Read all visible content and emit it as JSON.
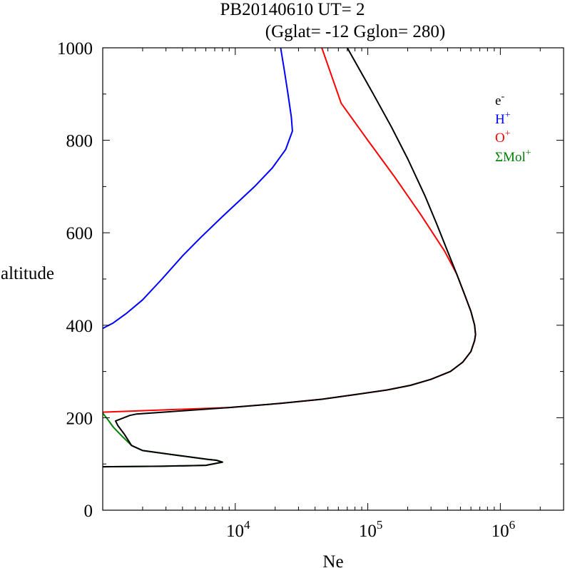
{
  "chart_data": {
    "type": "line",
    "title": "PB20140610   UT=  2",
    "subtitle": "(Gglat= -12   Gglon=  280)",
    "xlabel": "Ne",
    "ylabel": "altitude",
    "x_scale": "log",
    "xlim": [
      1000,
      3000000
    ],
    "ylim": [
      0,
      1000
    ],
    "x_major_ticks": [
      {
        "value": 10000,
        "base": "10",
        "exp": "4"
      },
      {
        "value": 100000,
        "base": "10",
        "exp": "5"
      },
      {
        "value": 1000000,
        "base": "10",
        "exp": "6"
      }
    ],
    "y_major_ticks": [
      0,
      200,
      400,
      600,
      800,
      1000
    ],
    "y_minor_step": 100,
    "grid": false,
    "legend_position": "top-right",
    "series": [
      {
        "name": "e",
        "sup": "-",
        "color": "#000000",
        "points": [
          [
            1000,
            94
          ],
          [
            2800,
            95
          ],
          [
            6000,
            97
          ],
          [
            8000,
            104
          ],
          [
            7200,
            108
          ],
          [
            6200,
            110
          ],
          [
            3800,
            118
          ],
          [
            2000,
            129
          ],
          [
            1650,
            140
          ],
          [
            1450,
            165
          ],
          [
            1300,
            183
          ],
          [
            1250,
            193
          ],
          [
            1600,
            205
          ],
          [
            1800,
            208
          ],
          [
            3200,
            213
          ],
          [
            9000,
            222
          ],
          [
            22000,
            231
          ],
          [
            45000,
            240
          ],
          [
            80000,
            250
          ],
          [
            140000,
            260
          ],
          [
            210000,
            270
          ],
          [
            300000,
            283
          ],
          [
            420000,
            300
          ],
          [
            520000,
            320
          ],
          [
            600000,
            343
          ],
          [
            640000,
            367
          ],
          [
            650000,
            380
          ],
          [
            640000,
            400
          ],
          [
            600000,
            430
          ],
          [
            540000,
            465
          ],
          [
            470000,
            510
          ],
          [
            400000,
            560
          ],
          [
            330000,
            620
          ],
          [
            270000,
            680
          ],
          [
            200000,
            760
          ],
          [
            150000,
            830
          ],
          [
            110000,
            900
          ],
          [
            70000,
            1000
          ]
        ]
      },
      {
        "name": "H",
        "sup": "+",
        "color": "#0000ff",
        "points": [
          [
            1000,
            393
          ],
          [
            1200,
            405
          ],
          [
            1500,
            425
          ],
          [
            2000,
            455
          ],
          [
            2800,
            500
          ],
          [
            4000,
            550
          ],
          [
            5500,
            590
          ],
          [
            8000,
            635
          ],
          [
            11000,
            672
          ],
          [
            14000,
            700
          ],
          [
            19000,
            740
          ],
          [
            24000,
            780
          ],
          [
            27000,
            820
          ],
          [
            26500,
            850
          ],
          [
            25000,
            900
          ],
          [
            23500,
            950
          ],
          [
            22000,
            1000
          ]
        ]
      },
      {
        "name": "O",
        "sup": "+",
        "color": "#ff0000",
        "points": [
          [
            1000,
            212
          ],
          [
            9000,
            222
          ],
          [
            22000,
            231
          ],
          [
            45000,
            240
          ],
          [
            80000,
            250
          ],
          [
            140000,
            260
          ],
          [
            210000,
            270
          ],
          [
            300000,
            283
          ],
          [
            420000,
            300
          ],
          [
            520000,
            320
          ],
          [
            600000,
            343
          ],
          [
            640000,
            367
          ],
          [
            650000,
            380
          ],
          [
            640000,
            400
          ],
          [
            600000,
            430
          ],
          [
            540000,
            465
          ],
          [
            470000,
            510
          ],
          [
            380000,
            560
          ],
          [
            250000,
            640
          ],
          [
            160000,
            720
          ],
          [
            100000,
            800
          ],
          [
            63000,
            880
          ],
          [
            45000,
            1000
          ]
        ]
      },
      {
        "name": "ΣMol",
        "sup": "+",
        "color": "#008000",
        "points": [
          [
            1000,
            94
          ],
          [
            2800,
            95
          ],
          [
            6000,
            97
          ],
          [
            8000,
            104
          ],
          [
            7200,
            108
          ],
          [
            6200,
            110
          ],
          [
            3800,
            118
          ],
          [
            2000,
            129
          ],
          [
            1650,
            140
          ],
          [
            1400,
            160
          ],
          [
            1200,
            180
          ],
          [
            1080,
            198
          ],
          [
            1000,
            210
          ]
        ]
      }
    ]
  }
}
